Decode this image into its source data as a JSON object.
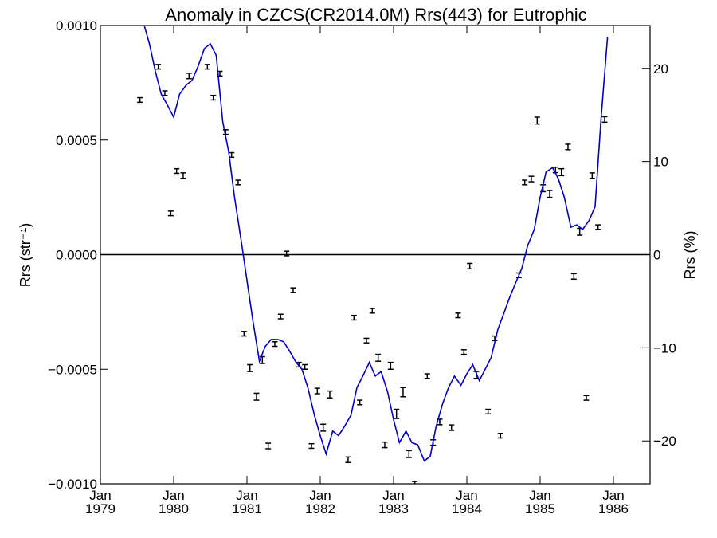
{
  "chart_data": {
    "type": "scatter",
    "title": "Anomaly in CZCS(CR2014.0M) Rrs(443) for Eutrophic",
    "ylabel_left": "Rrs (str⁻¹)",
    "ylabel_right": "Rrs (%)",
    "xlim": [
      1979.0,
      1986.5
    ],
    "ylim": [
      -0.001,
      0.001
    ],
    "ylim_right": [
      -24.6,
      24.6
    ],
    "grid": false,
    "zero_line": true,
    "x_ticks": [
      {
        "x": 1979,
        "month": "Jan",
        "year": "1979"
      },
      {
        "x": 1980,
        "month": "Jan",
        "year": "1980"
      },
      {
        "x": 1981,
        "month": "Jan",
        "year": "1981"
      },
      {
        "x": 1982,
        "month": "Jan",
        "year": "1982"
      },
      {
        "x": 1983,
        "month": "Jan",
        "year": "1983"
      },
      {
        "x": 1984,
        "month": "Jan",
        "year": "1984"
      },
      {
        "x": 1985,
        "month": "Jan",
        "year": "1985"
      },
      {
        "x": 1986,
        "month": "Jan",
        "year": "1986"
      }
    ],
    "y_ticks_left": [
      {
        "v": 0.001,
        "label": "0.0010"
      },
      {
        "v": 0.0005,
        "label": "0.0005"
      },
      {
        "v": 0.0,
        "label": "0.0000"
      },
      {
        "v": -0.0005,
        "label": "−0.0005"
      },
      {
        "v": -0.001,
        "label": "−0.0010"
      }
    ],
    "y_ticks_right": [
      {
        "v": 20,
        "label": "20"
      },
      {
        "v": 10,
        "label": "10"
      },
      {
        "v": 0,
        "label": "0"
      },
      {
        "v": -10,
        "label": "−10"
      },
      {
        "v": -20,
        "label": "−20"
      }
    ],
    "colors": {
      "line": "#0000cc",
      "points": "#000000",
      "axes": "#000000"
    },
    "series": [
      {
        "type": "errorbar",
        "points": [
          {
            "x": 1979.54,
            "y": 0.000675,
            "err": 1e-05
          },
          {
            "x": 1979.79,
            "y": 0.00082,
            "err": 1e-05
          },
          {
            "x": 1979.88,
            "y": 0.000705,
            "err": 1e-05
          },
          {
            "x": 1979.96,
            "y": 0.00018,
            "err": 1e-05
          },
          {
            "x": 1980.04,
            "y": 0.000365,
            "err": 1e-05
          },
          {
            "x": 1980.13,
            "y": 0.000345,
            "err": 1.2e-05
          },
          {
            "x": 1980.21,
            "y": 0.00078,
            "err": 1.2e-05
          },
          {
            "x": 1980.46,
            "y": 0.00082,
            "err": 1e-05
          },
          {
            "x": 1980.54,
            "y": 0.000685,
            "err": 1e-05
          },
          {
            "x": 1980.63,
            "y": 0.00079,
            "err": 1e-05
          },
          {
            "x": 1980.71,
            "y": 0.000535,
            "err": 1e-05
          },
          {
            "x": 1980.79,
            "y": 0.000435,
            "err": 1e-05
          },
          {
            "x": 1980.88,
            "y": 0.000315,
            "err": 1e-05
          },
          {
            "x": 1980.96,
            "y": -0.000345,
            "err": 1e-05
          },
          {
            "x": 1981.04,
            "y": -0.000495,
            "err": 1.5e-05
          },
          {
            "x": 1981.13,
            "y": -0.00062,
            "err": 1.5e-05
          },
          {
            "x": 1981.21,
            "y": -0.00046,
            "err": 1.5e-05
          },
          {
            "x": 1981.29,
            "y": -0.000835,
            "err": 1.2e-05
          },
          {
            "x": 1981.38,
            "y": -0.00039,
            "err": 1e-05
          },
          {
            "x": 1981.46,
            "y": -0.00027,
            "err": 1e-05
          },
          {
            "x": 1981.54,
            "y": 5e-06,
            "err": 1e-05
          },
          {
            "x": 1981.63,
            "y": -0.000155,
            "err": 1e-05
          },
          {
            "x": 1981.71,
            "y": -0.00048,
            "err": 1e-05
          },
          {
            "x": 1981.79,
            "y": -0.00049,
            "err": 1e-05
          },
          {
            "x": 1981.88,
            "y": -0.000835,
            "err": 1e-05
          },
          {
            "x": 1981.96,
            "y": -0.000595,
            "err": 1.2e-05
          },
          {
            "x": 1982.04,
            "y": -0.000755,
            "err": 1.5e-05
          },
          {
            "x": 1982.13,
            "y": -0.00061,
            "err": 1.5e-05
          },
          {
            "x": 1982.38,
            "y": -0.000895,
            "err": 1.2e-05
          },
          {
            "x": 1982.46,
            "y": -0.000275,
            "err": 1e-05
          },
          {
            "x": 1982.54,
            "y": -0.000645,
            "err": 1e-05
          },
          {
            "x": 1982.63,
            "y": -0.000375,
            "err": 1e-05
          },
          {
            "x": 1982.71,
            "y": -0.000245,
            "err": 1e-05
          },
          {
            "x": 1982.79,
            "y": -0.00045,
            "err": 1.5e-05
          },
          {
            "x": 1982.88,
            "y": -0.00083,
            "err": 1.2e-05
          },
          {
            "x": 1982.96,
            "y": -0.000485,
            "err": 1.5e-05
          },
          {
            "x": 1983.04,
            "y": -0.000695,
            "err": 2e-05
          },
          {
            "x": 1983.13,
            "y": -0.0006,
            "err": 2e-05
          },
          {
            "x": 1983.21,
            "y": -0.00087,
            "err": 1.5e-05
          },
          {
            "x": 1983.29,
            "y": -0.001,
            "err": 1e-05
          },
          {
            "x": 1983.46,
            "y": -0.00053,
            "err": 1e-05
          },
          {
            "x": 1983.54,
            "y": -0.00082,
            "err": 1.2e-05
          },
          {
            "x": 1983.63,
            "y": -0.00073,
            "err": 1.2e-05
          },
          {
            "x": 1983.79,
            "y": -0.000755,
            "err": 1.2e-05
          },
          {
            "x": 1983.88,
            "y": -0.000265,
            "err": 1e-05
          },
          {
            "x": 1983.96,
            "y": -0.000425,
            "err": 1e-05
          },
          {
            "x": 1984.04,
            "y": -5e-05,
            "err": 1.2e-05
          },
          {
            "x": 1984.13,
            "y": -0.000525,
            "err": 1.5e-05
          },
          {
            "x": 1984.29,
            "y": -0.000685,
            "err": 1e-05
          },
          {
            "x": 1984.38,
            "y": -0.000365,
            "err": 1e-05
          },
          {
            "x": 1984.46,
            "y": -0.00079,
            "err": 1e-05
          },
          {
            "x": 1984.71,
            "y": -9e-05,
            "err": 1e-05
          },
          {
            "x": 1984.79,
            "y": 0.000315,
            "err": 1e-05
          },
          {
            "x": 1984.88,
            "y": 0.00033,
            "err": 1.2e-05
          },
          {
            "x": 1984.96,
            "y": 0.000585,
            "err": 1.5e-05
          },
          {
            "x": 1985.04,
            "y": 0.00029,
            "err": 1.5e-05
          },
          {
            "x": 1985.13,
            "y": 0.000265,
            "err": 1.5e-05
          },
          {
            "x": 1985.21,
            "y": 0.00037,
            "err": 1.2e-05
          },
          {
            "x": 1985.29,
            "y": 0.00036,
            "err": 1.5e-05
          },
          {
            "x": 1985.38,
            "y": 0.00047,
            "err": 1.2e-05
          },
          {
            "x": 1985.46,
            "y": -9.5e-05,
            "err": 1.2e-05
          },
          {
            "x": 1985.54,
            "y": 0.0001,
            "err": 1.5e-05
          },
          {
            "x": 1985.63,
            "y": -0.000625,
            "err": 1e-05
          },
          {
            "x": 1985.71,
            "y": 0.000345,
            "err": 1.2e-05
          },
          {
            "x": 1985.79,
            "y": 0.00012,
            "err": 1e-05
          },
          {
            "x": 1985.88,
            "y": 0.00059,
            "err": 1.2e-05
          }
        ]
      },
      {
        "type": "line",
        "x": [
          1979.58,
          1979.67,
          1979.75,
          1979.83,
          1979.92,
          1980.0,
          1980.08,
          1980.17,
          1980.25,
          1980.33,
          1980.42,
          1980.5,
          1980.58,
          1980.67,
          1980.75,
          1980.83,
          1980.92,
          1981.0,
          1981.08,
          1981.17,
          1981.25,
          1981.33,
          1981.42,
          1981.5,
          1981.58,
          1981.67,
          1981.75,
          1981.83,
          1981.92,
          1982.0,
          1982.08,
          1982.17,
          1982.25,
          1982.33,
          1982.42,
          1982.5,
          1982.58,
          1982.67,
          1982.75,
          1982.83,
          1982.92,
          1983.0,
          1983.08,
          1983.17,
          1983.25,
          1983.33,
          1983.42,
          1983.5,
          1983.58,
          1983.67,
          1983.75,
          1983.83,
          1983.92,
          1984.0,
          1984.08,
          1984.17,
          1984.25,
          1984.33,
          1984.42,
          1984.5,
          1984.58,
          1984.67,
          1984.75,
          1984.83,
          1984.92,
          1985.0,
          1985.08,
          1985.17,
          1985.25,
          1985.33,
          1985.42,
          1985.5,
          1985.58,
          1985.67,
          1985.75,
          1985.83,
          1985.92
        ],
        "y": [
          0.00102,
          0.00092,
          0.0008,
          0.0007,
          0.00065,
          0.0006,
          0.0007,
          0.00074,
          0.00076,
          0.00082,
          0.0009,
          0.00092,
          0.00087,
          0.00058,
          0.00045,
          0.00025,
          6.4e-05,
          -0.000112,
          -0.000288,
          -0.000465,
          -0.0004,
          -0.00037,
          -0.00037,
          -0.00038,
          -0.00042,
          -0.00047,
          -0.0005,
          -0.00058,
          -0.0007,
          -0.00079,
          -0.00087,
          -0.00077,
          -0.00079,
          -0.00075,
          -0.0007,
          -0.00058,
          -0.00053,
          -0.00047,
          -0.00053,
          -0.00051,
          -0.0006,
          -0.00072,
          -0.00082,
          -0.00077,
          -0.00082,
          -0.00083,
          -0.0009,
          -0.00088,
          -0.00075,
          -0.00065,
          -0.00058,
          -0.00053,
          -0.00057,
          -0.00052,
          -0.00048,
          -0.00055,
          -0.0005,
          -0.00045,
          -0.00033,
          -0.00026,
          -0.00019,
          -0.00012,
          -6e-05,
          4e-05,
          0.00011,
          0.00025,
          0.00036,
          0.00038,
          0.00033,
          0.00025,
          0.00012,
          0.00013,
          0.00011,
          0.00015,
          0.00021,
          0.00059,
          0.00095
        ]
      }
    ]
  }
}
